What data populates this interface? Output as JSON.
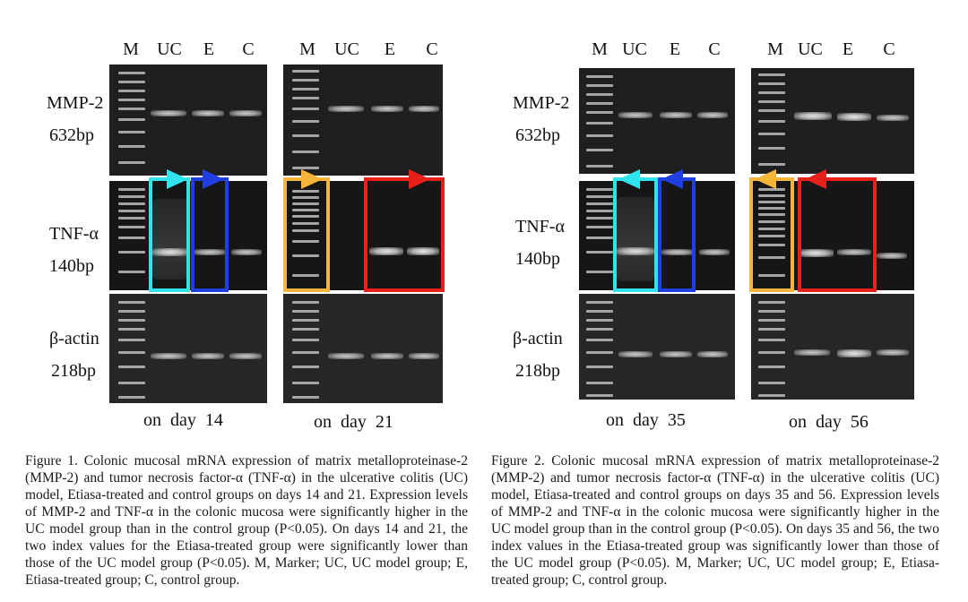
{
  "lanes": [
    "M",
    "UC",
    "E",
    "C"
  ],
  "rows": {
    "mmp2": {
      "name": "MMP-2",
      "size": "632bp"
    },
    "tnf": {
      "name": "TNF-α",
      "size": "140bp"
    },
    "actin": {
      "name": "β-actin",
      "size": "218bp"
    }
  },
  "days": [
    "on  day  14",
    "on  day  21",
    "on  day  35",
    "on  day  56"
  ],
  "highlight_colors": {
    "cyan": "#2fe4ee",
    "blue": "#1f3fe0",
    "orange": "#f5b53b",
    "red": "#e8201a"
  },
  "captions": {
    "figure1": "Figure 1. Colonic mucosal mRNA expression of matrix metalloproteinase-2 (MMP-2) and tumor necrosis factor-α (TNF-α) in the ulcerative colitis (UC) model, Etiasa-treated and control groups on days 14 and 21. Expression levels of MMP-2 and TNF-α in the colonic mucosa were significantly higher in the UC model group than in the control group (P<0.05). On days 14 and 21, the two index values for the Etiasa-treated group were significantly lower than those of the UC model group (P<0.05).  M, Marker; UC, UC model group; E, Etiasa-treated group; C, control group.",
    "figure2": "Figure 2. Colonic mucosal mRNA expression of matrix metalloproteinase-2 (MMP-2) and tumor necrosis factor-α (TNF-α) in the ulcerative colitis (UC) model, Etiasa-treated and control groups on days 35 and 56. Expression levels of MMP-2 and TNF-α in the colonic mucosa were significantly higher in the UC model group than in the control group (P<0.05). On days 35 and 56, the two index values in the Etiasa-treated group was significantly lower than those of the UC model group (P<0.05). M, Marker; UC, UC model group; E, Etiasa-treated group; C, control group."
  }
}
